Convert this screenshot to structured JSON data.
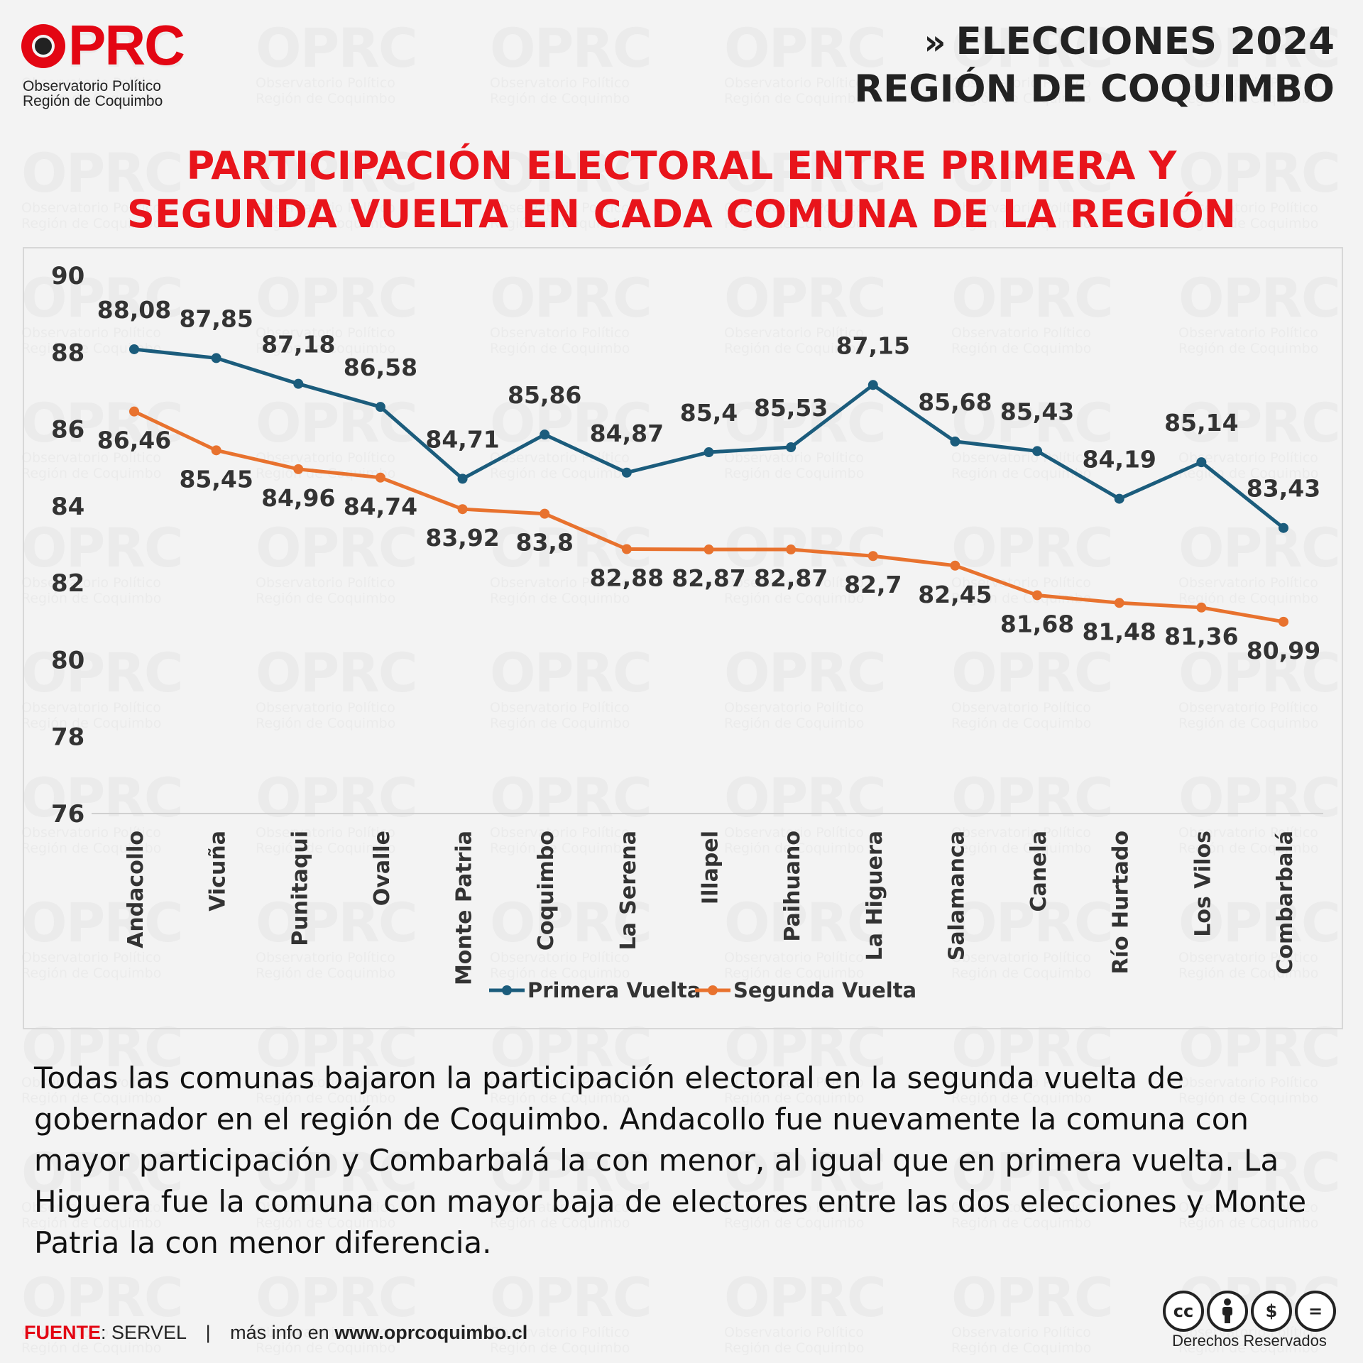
{
  "brand": {
    "name": "OPRC",
    "subtitle_line1": "Observatorio Político",
    "subtitle_line2": "Región de Coquimbo",
    "color": "#e30613"
  },
  "header": {
    "line1": "ELECCIONES 2024",
    "line2": "REGIÓN DE COQUIMBO",
    "chevron": "»"
  },
  "title_line1": "PARTICIPACIÓN ELECTORAL ENTRE PRIMERA Y",
  "title_line2": "SEGUNDA VUELTA EN CADA COMUNA DE LA REGIÓN",
  "chart_data": {
    "type": "line",
    "categories": [
      "Andacollo",
      "Vicuña",
      "Punitaqui",
      "Ovalle",
      "Monte Patria",
      "Coquimbo",
      "La Serena",
      "Illapel",
      "Paihuano",
      "La Higuera",
      "Salamanca",
      "Canela",
      "Río Hurtado",
      "Los Vilos",
      "Combarbalá"
    ],
    "series": [
      {
        "name": "Primera Vuelta",
        "color": "#1b5c7c",
        "values": [
          88.08,
          87.85,
          87.18,
          86.58,
          84.71,
          85.86,
          84.87,
          85.4,
          85.53,
          87.15,
          85.68,
          85.43,
          84.19,
          85.14,
          83.43
        ],
        "labels": [
          "88,08",
          "87,85",
          "87,18",
          "86,58",
          "84,71",
          "85,86",
          "84,87",
          "85,4",
          "85,53",
          "87,15",
          "85,68",
          "85,43",
          "84,19",
          "85,14",
          "83,43"
        ]
      },
      {
        "name": "Segunda Vuelta",
        "color": "#e8722e",
        "values": [
          86.46,
          85.45,
          84.96,
          84.74,
          83.92,
          83.8,
          82.88,
          82.87,
          82.87,
          82.7,
          82.45,
          81.68,
          81.48,
          81.36,
          80.99
        ],
        "labels": [
          "86,46",
          "85,45",
          "84,96",
          "84,74",
          "83,92",
          "83,8",
          "82,88",
          "82,87",
          "82,87",
          "82,7",
          "82,45",
          "81,68",
          "81,48",
          "81,36",
          "80,99"
        ]
      }
    ],
    "ylim": [
      76,
      90
    ],
    "yticks": [
      "90",
      "88",
      "86",
      "84",
      "82",
      "80",
      "78",
      "76"
    ],
    "title": "PARTICIPACIÓN ELECTORAL ENTRE PRIMERA Y SEGUNDA VUELTA EN CADA COMUNA DE LA REGIÓN",
    "xlabel": "",
    "ylabel": "",
    "legend": "bottom",
    "grid": false
  },
  "description": "Todas las comunas bajaron la participación electoral en la segunda vuelta de gobernador en el región de Coquimbo. Andacollo fue nuevamente la comuna con mayor participación y Combarbalá la con menor, al igual que en primera vuelta. La Higuera fue la comuna con mayor baja de electores entre las dos elecciones y Monte Patria la con menor diferencia.",
  "footer": {
    "source_key": "FUENTE",
    "source_value": ": SERVEL",
    "separator": "|",
    "more_info": "más info en ",
    "website": "www.oprcoquimbo.cl",
    "rights": "Derechos Reservados",
    "cc_icons": [
      "cc-icon",
      "by-icon",
      "nc-icon",
      "nd-icon"
    ]
  }
}
